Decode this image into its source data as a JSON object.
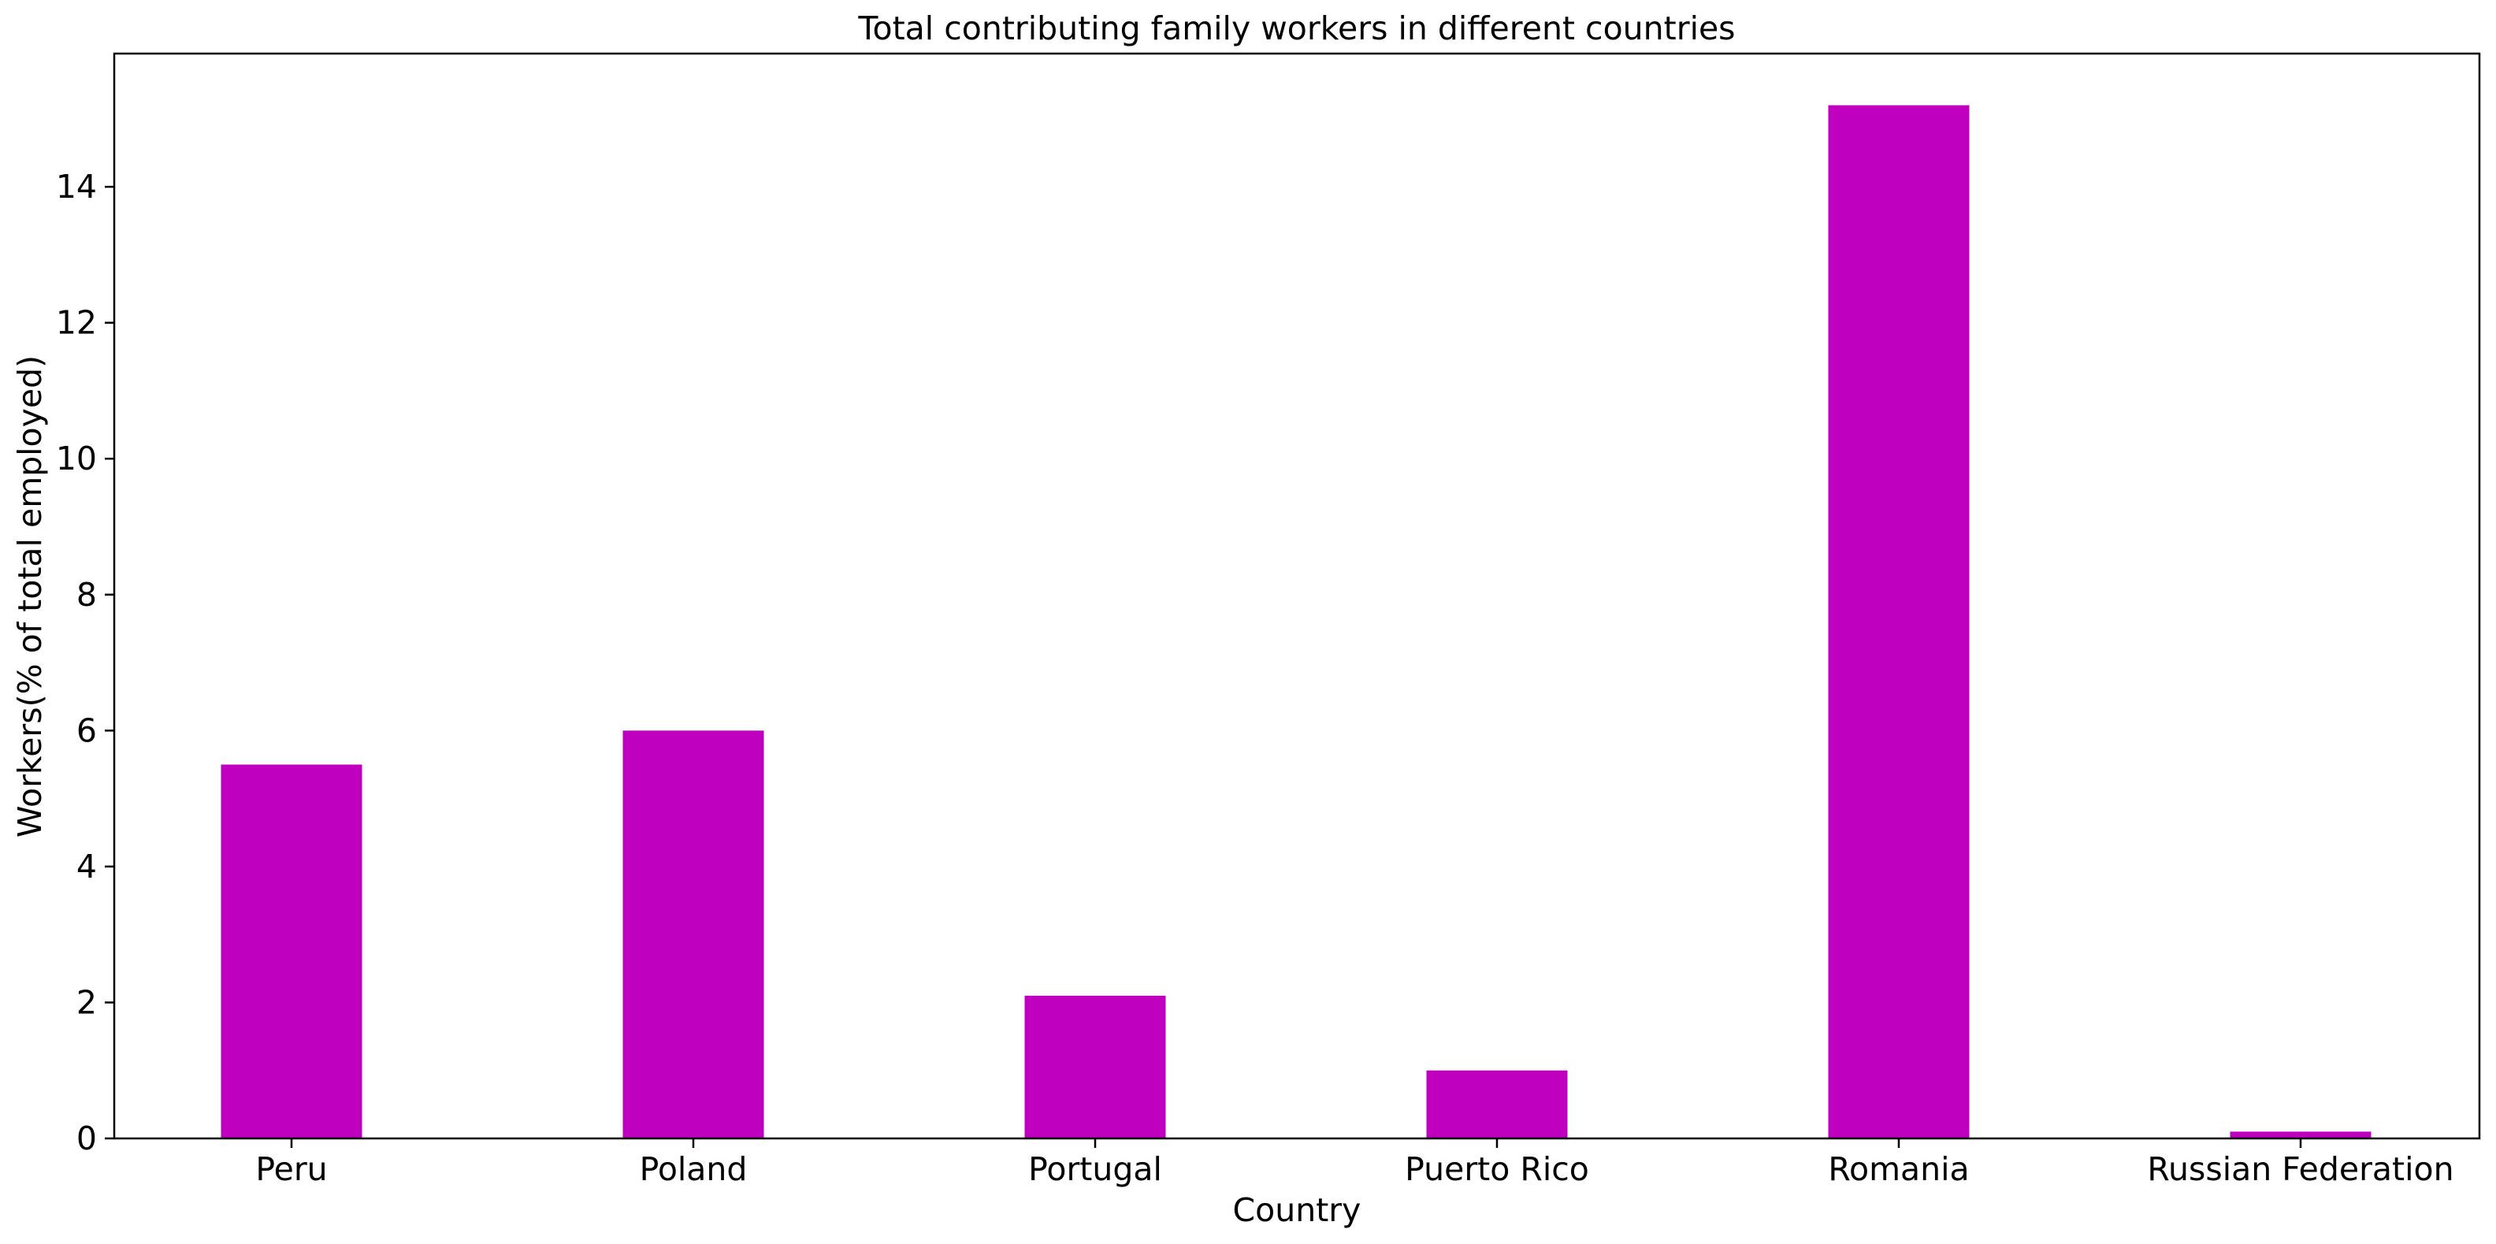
{
  "chart_data": {
    "type": "bar",
    "title": "Total contributing family workers in different countries",
    "xlabel": "Country",
    "ylabel": "Workers(% of total employed)",
    "categories": [
      "Peru",
      "Poland",
      "Portugal",
      "Puerto Rico",
      "Romania",
      "Russian Federation"
    ],
    "series": [
      {
        "values": [
          5.5,
          6.0,
          2.1,
          1.0,
          15.2,
          0.1
        ]
      }
    ],
    "ylim": [
      0,
      15.96
    ],
    "yticks": [
      0,
      2,
      4,
      6,
      8,
      10,
      12,
      14
    ],
    "bar_color": "#bf00bf",
    "grid": false,
    "legend": "none"
  }
}
